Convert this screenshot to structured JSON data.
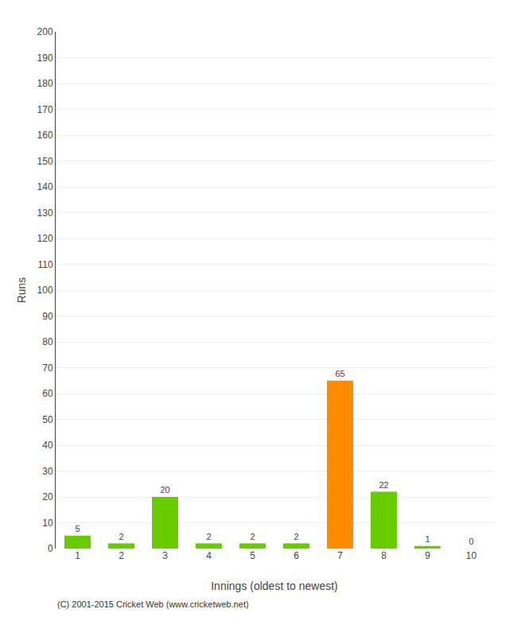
{
  "chart_data": {
    "type": "bar",
    "xlabel": "Innings (oldest to newest)",
    "ylabel": "Runs",
    "categories": [
      1,
      2,
      3,
      4,
      5,
      6,
      7,
      8,
      9,
      10
    ],
    "values": [
      5,
      2,
      20,
      2,
      2,
      2,
      65,
      22,
      1,
      0
    ],
    "colors": [
      "#66cc00",
      "#66cc00",
      "#66cc00",
      "#66cc00",
      "#66cc00",
      "#66cc00",
      "#ff8c00",
      "#66cc00",
      "#66cc00",
      "#66cc00"
    ],
    "ylim": [
      0,
      200
    ],
    "yticks": [
      0,
      10,
      20,
      30,
      40,
      50,
      60,
      70,
      80,
      90,
      100,
      110,
      120,
      130,
      140,
      150,
      160,
      170,
      180,
      190,
      200
    ],
    "grid": true,
    "data_labels": true,
    "annotations": [
      "(C) 2001-2015 Cricket Web (www.cricketweb.net)"
    ]
  }
}
